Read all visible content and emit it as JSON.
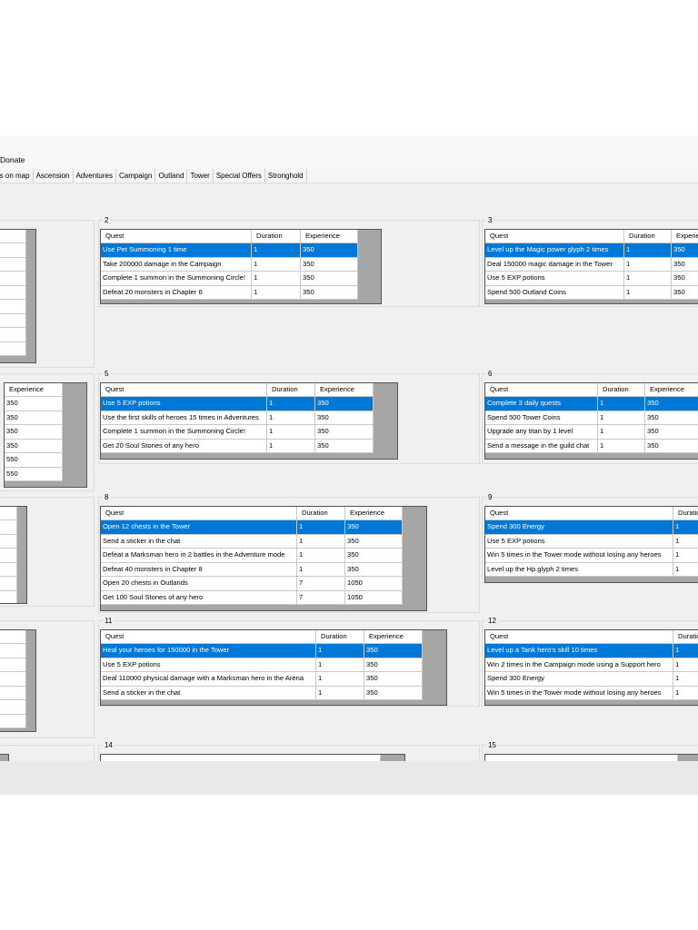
{
  "menu": {
    "items": [
      "Donate"
    ]
  },
  "tabs": [
    "nts on map",
    "Ascension",
    "Adventures",
    "Campaign",
    "Outland",
    "Tower",
    "Special Offers",
    "Stronghold"
  ],
  "panels": [
    {
      "columns": [
        "Experience"
      ],
      "rows": [
        [
          "350"
        ],
        [
          "350"
        ],
        [
          "350"
        ],
        [
          "350"
        ],
        [
          "550"
        ],
        [
          "550"
        ]
      ]
    },
    {
      "label": "2",
      "columns": [
        "Quest",
        "Duration",
        "Experience"
      ],
      "rows": [
        [
          "Use Pet Summoning 1 time",
          "1",
          "350"
        ],
        [
          "Take 200000 damage in the Campaign",
          "1",
          "350"
        ],
        [
          "Complete 1 summon in the Summoning Circle!",
          "1",
          "350"
        ],
        [
          "Defeat 20 monsters in Chapter 6",
          "1",
          "350"
        ]
      ]
    },
    {
      "label": "3",
      "columns": [
        "Quest",
        "Duration",
        "Experience"
      ],
      "rows": [
        [
          "Level up the Magic power glyph 2 times",
          "1",
          "350"
        ],
        [
          "Deal 150000 magic damage in the Tower",
          "1",
          "350"
        ],
        [
          "Use 5 EXP potions",
          "1",
          "350"
        ],
        [
          "Spend 500 Outland Coins",
          "1",
          "350"
        ]
      ]
    },
    {
      "label": "5",
      "columns": [
        "Quest",
        "Duration",
        "Experience"
      ],
      "rows": [
        [
          "Use 5 EXP potions",
          "1",
          "350"
        ],
        [
          "Use the first skills of heroes 15 times in Adventures",
          "1",
          "350"
        ],
        [
          "Complete 1 summon in the Summoning Circle!",
          "1",
          "350"
        ],
        [
          "Get 20 Soul Stones of any hero",
          "1",
          "350"
        ]
      ]
    },
    {
      "label": "6",
      "columns": [
        "Quest",
        "Duration",
        "Experience"
      ],
      "rows": [
        [
          "Complete 3 daily quests",
          "1",
          "350"
        ],
        [
          "Spend 500 Tower Coins",
          "1",
          "350"
        ],
        [
          "Upgrade any titan by 1 level",
          "1",
          "350"
        ],
        [
          "Send a message in the guild chat",
          "1",
          "350"
        ]
      ]
    },
    {
      "label": "8",
      "columns": [
        "Quest",
        "Duration",
        "Experience"
      ],
      "rows": [
        [
          "Open 12 chests in the Tower",
          "1",
          "350"
        ],
        [
          "Send a sticker in the chat",
          "1",
          "350"
        ],
        [
          "Defeat a Marksman hero in 2 battles in the Adventure mode",
          "1",
          "350"
        ],
        [
          "Defeat 40 monsters in Chapter 8",
          "1",
          "350"
        ],
        [
          "Open 20 chests in Outlands",
          "7",
          "1050"
        ],
        [
          "Get 100 Soul Stones of any hero",
          "7",
          "1050"
        ]
      ]
    },
    {
      "label": "9",
      "columns": [
        "Quest",
        "Duration"
      ],
      "rows": [
        [
          "Spend 300 Energy",
          "1"
        ],
        [
          "Use 5 EXP potions",
          "1"
        ],
        [
          "Win 5 times in the Tower mode without losing any heroes",
          "1"
        ],
        [
          "Level up the Hp glyph 2 times",
          "1"
        ]
      ]
    },
    {
      "label": "11",
      "columns": [
        "Quest",
        "Duration",
        "Experience"
      ],
      "rows": [
        [
          "Heal your heroes for 150000 in the Tower",
          "1",
          "350"
        ],
        [
          "Use 5 EXP potions",
          "1",
          "350"
        ],
        [
          "Deal 110000 physical damage with a Marksman hero in the Arena",
          "1",
          "350"
        ],
        [
          "Send a sticker in the chat",
          "1",
          "350"
        ]
      ]
    },
    {
      "label": "12",
      "columns": [
        "Quest",
        "Duration"
      ],
      "rows": [
        [
          "Level up a Tank hero's skill 10 times",
          "1"
        ],
        [
          "Win 2 times in the Campaign mode using a Support hero",
          "1"
        ],
        [
          "Spend 300 Energy",
          "1"
        ],
        [
          "Win 5 times in the Tower mode without losing any heroes",
          "1"
        ]
      ]
    },
    {
      "label": "14",
      "columns": [],
      "rows": []
    },
    {
      "label": "15",
      "columns": [],
      "rows": []
    }
  ]
}
